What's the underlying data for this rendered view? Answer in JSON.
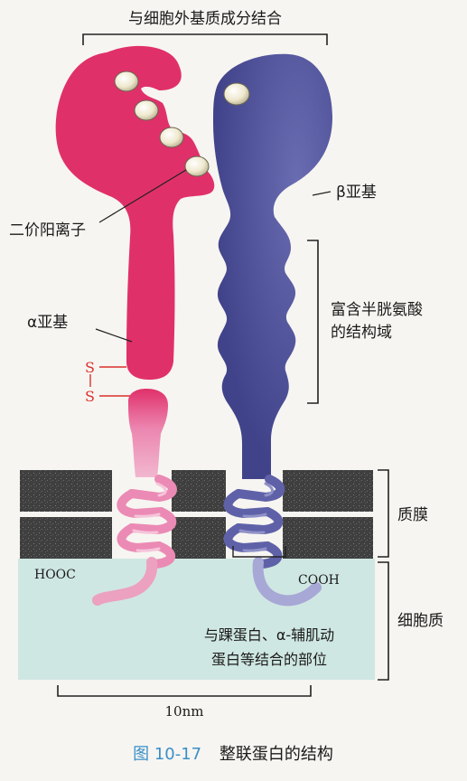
{
  "labels": {
    "top_binding": "与细胞外基质成分结合",
    "divalent_cation": "二价阳离子",
    "alpha_subunit": "α亚基",
    "beta_subunit": "β亚基",
    "cysteine_rich_1": "富含半胱氨酸",
    "cysteine_rich_2": "的结构域",
    "ss_top": "S",
    "ss_bottom": "S",
    "membrane": "质膜",
    "cytoplasm": "细胞质",
    "hooc": "HOOC",
    "cooh": "COOH",
    "cyto_binding_1": "与踝蛋白、α-辅肌动",
    "cyto_binding_2": "蛋白等结合的部位",
    "scale": "10nm"
  },
  "caption": {
    "number": "图 10-17",
    "title": "整联蛋白的结构"
  },
  "colors": {
    "alpha": "#e0306a",
    "beta": "#4a4c94",
    "cytoplasm": "#cfe7e2",
    "membrane": "#4b4b4b",
    "cation": "#efe9cf",
    "caption_number": "#3a8fc9"
  }
}
